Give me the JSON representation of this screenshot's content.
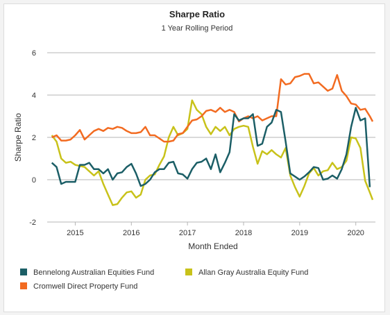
{
  "chart_data": {
    "type": "line",
    "title": "Sharpe Ratio",
    "subtitle": "1 Year Rolling Period",
    "xlabel": "Month Ended",
    "ylabel": "Sharpe Ratio",
    "ylim": [
      -2,
      6
    ],
    "xlim": [
      2014.5,
      2020.35
    ],
    "yticks": [
      -2,
      0,
      2,
      4,
      6
    ],
    "xticks": [
      2015,
      2016,
      2017,
      2018,
      2019,
      2020
    ],
    "grid": true,
    "legend_position": "bottom",
    "series": [
      {
        "name": "Bennelong Australian Equities Fund",
        "color": "#1b5e66",
        "x": [
          2014.583,
          2014.667,
          2014.75,
          2014.833,
          2014.917,
          2015.0,
          2015.083,
          2015.167,
          2015.25,
          2015.333,
          2015.417,
          2015.5,
          2015.583,
          2015.667,
          2015.75,
          2015.833,
          2015.917,
          2016.0,
          2016.083,
          2016.167,
          2016.25,
          2016.333,
          2016.417,
          2016.5,
          2016.583,
          2016.667,
          2016.75,
          2016.833,
          2016.917,
          2017.0,
          2017.083,
          2017.167,
          2017.25,
          2017.333,
          2017.417,
          2017.5,
          2017.583,
          2017.667,
          2017.75,
          2017.833,
          2017.917,
          2018.0,
          2018.083,
          2018.167,
          2018.25,
          2018.333,
          2018.417,
          2018.5,
          2018.583,
          2018.667,
          2018.75,
          2018.833,
          2018.917,
          2019.0,
          2019.083,
          2019.167,
          2019.25,
          2019.333,
          2019.417,
          2019.5,
          2019.583,
          2019.667,
          2019.75,
          2019.833,
          2019.917,
          2020.0,
          2020.083,
          2020.167,
          2020.25
        ],
        "values": [
          0.8,
          0.6,
          -0.2,
          -0.1,
          -0.1,
          -0.1,
          0.7,
          0.7,
          0.8,
          0.5,
          0.5,
          0.3,
          0.5,
          0.0,
          0.3,
          0.35,
          0.6,
          0.75,
          0.3,
          -0.3,
          -0.2,
          0.0,
          0.35,
          0.5,
          0.5,
          0.8,
          0.85,
          0.3,
          0.25,
          0.05,
          0.5,
          0.8,
          0.85,
          1.0,
          0.5,
          1.2,
          0.35,
          0.8,
          1.3,
          3.1,
          2.8,
          2.9,
          2.9,
          3.1,
          1.6,
          1.7,
          2.5,
          2.7,
          3.3,
          3.2,
          1.8,
          0.3,
          0.15,
          0.0,
          0.15,
          0.35,
          0.6,
          0.55,
          0.0,
          0.05,
          0.2,
          0.05,
          0.5,
          1.2,
          2.5,
          3.4,
          2.8,
          2.9,
          -0.35
        ]
      },
      {
        "name": "Allan Gray Australia Equity Fund",
        "color": "#c8c21a",
        "x": [
          2014.583,
          2014.667,
          2014.75,
          2014.833,
          2014.917,
          2015.0,
          2015.083,
          2015.167,
          2015.25,
          2015.333,
          2015.417,
          2015.5,
          2015.583,
          2015.667,
          2015.75,
          2015.833,
          2015.917,
          2016.0,
          2016.083,
          2016.167,
          2016.25,
          2016.333,
          2016.417,
          2016.5,
          2016.583,
          2016.667,
          2016.75,
          2016.833,
          2016.917,
          2017.0,
          2017.083,
          2017.167,
          2017.25,
          2017.333,
          2017.417,
          2017.5,
          2017.583,
          2017.667,
          2017.75,
          2017.833,
          2017.917,
          2018.0,
          2018.083,
          2018.167,
          2018.25,
          2018.333,
          2018.417,
          2018.5,
          2018.583,
          2018.667,
          2018.75,
          2018.833,
          2018.917,
          2019.0,
          2019.083,
          2019.167,
          2019.25,
          2019.333,
          2019.417,
          2019.5,
          2019.583,
          2019.667,
          2019.75,
          2019.833,
          2019.917,
          2020.0,
          2020.083,
          2020.167,
          2020.25,
          2020.3
        ],
        "values": [
          2.1,
          1.8,
          1.0,
          0.8,
          0.85,
          0.7,
          0.65,
          0.6,
          0.4,
          0.2,
          0.4,
          -0.2,
          -0.7,
          -1.2,
          -1.15,
          -0.85,
          -0.6,
          -0.55,
          -0.85,
          -0.7,
          0.0,
          0.2,
          0.25,
          0.7,
          1.1,
          2.0,
          2.5,
          2.1,
          2.2,
          2.4,
          3.75,
          3.3,
          3.1,
          2.5,
          2.15,
          2.5,
          2.3,
          2.5,
          2.1,
          2.4,
          2.5,
          2.55,
          2.5,
          1.55,
          0.75,
          1.35,
          1.2,
          1.4,
          1.2,
          1.05,
          1.5,
          0.2,
          -0.35,
          -0.8,
          -0.3,
          0.3,
          0.55,
          0.2,
          0.4,
          0.45,
          0.8,
          0.5,
          0.6,
          0.9,
          2.0,
          1.95,
          1.5,
          -0.05,
          -0.6,
          -0.95
        ]
      },
      {
        "name": "Cromwell Direct Property Fund",
        "color": "#f26b21",
        "x": [
          2014.583,
          2014.667,
          2014.75,
          2014.833,
          2014.917,
          2015.0,
          2015.083,
          2015.167,
          2015.25,
          2015.333,
          2015.417,
          2015.5,
          2015.583,
          2015.667,
          2015.75,
          2015.833,
          2015.917,
          2016.0,
          2016.083,
          2016.167,
          2016.25,
          2016.333,
          2016.417,
          2016.5,
          2016.583,
          2016.667,
          2016.75,
          2016.833,
          2016.917,
          2017.0,
          2017.083,
          2017.167,
          2017.25,
          2017.333,
          2017.417,
          2017.5,
          2017.583,
          2017.667,
          2017.75,
          2017.833,
          2017.917,
          2018.0,
          2018.083,
          2018.167,
          2018.25,
          2018.333,
          2018.417,
          2018.5,
          2018.583,
          2018.667,
          2018.75,
          2018.833,
          2018.917,
          2019.0,
          2019.083,
          2019.167,
          2019.25,
          2019.333,
          2019.417,
          2019.5,
          2019.583,
          2019.667,
          2019.75,
          2019.833,
          2019.917,
          2020.0,
          2020.083,
          2020.167,
          2020.25,
          2020.3
        ],
        "values": [
          2.0,
          2.1,
          1.85,
          1.85,
          1.9,
          2.1,
          2.35,
          1.9,
          2.1,
          2.3,
          2.4,
          2.3,
          2.45,
          2.4,
          2.5,
          2.45,
          2.3,
          2.2,
          2.2,
          2.25,
          2.5,
          2.1,
          2.1,
          1.95,
          1.8,
          1.8,
          1.85,
          2.15,
          2.2,
          2.5,
          2.8,
          2.85,
          3.0,
          3.25,
          3.3,
          3.2,
          3.4,
          3.2,
          3.3,
          3.2,
          2.75,
          2.9,
          3.0,
          2.9,
          3.0,
          2.8,
          2.9,
          3.0,
          3.0,
          4.75,
          4.5,
          4.55,
          4.85,
          4.9,
          5.0,
          5.0,
          4.55,
          4.6,
          4.4,
          4.2,
          4.3,
          4.95,
          4.2,
          3.95,
          3.6,
          3.55,
          3.3,
          3.35,
          3.0,
          2.75
        ]
      }
    ]
  }
}
